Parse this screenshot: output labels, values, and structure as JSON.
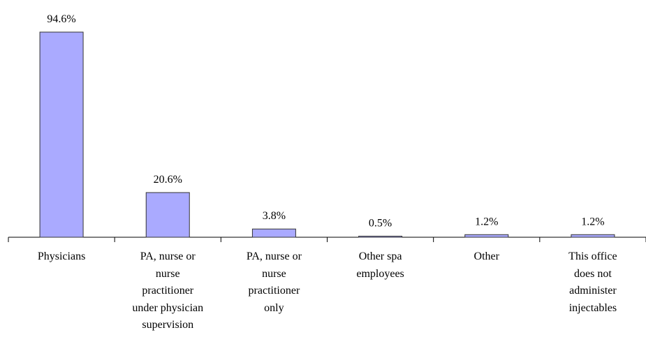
{
  "chart_data": {
    "type": "bar",
    "categories": [
      "Physicians",
      "PA, nurse or\nnurse\npractitioner\nunder physician\nsupervision",
      "PA, nurse or\nnurse\npractitioner\nonly",
      "Other spa\nemployees",
      "Other",
      "This office\ndoes not\nadminister\ninjectables"
    ],
    "values": [
      94.6,
      20.6,
      3.8,
      0.5,
      1.2,
      1.2
    ],
    "value_labels": [
      "94.6%",
      "20.6%",
      "3.8%",
      "0.5%",
      "1.2%",
      "1.2%"
    ],
    "color": "#aaaaff"
  }
}
